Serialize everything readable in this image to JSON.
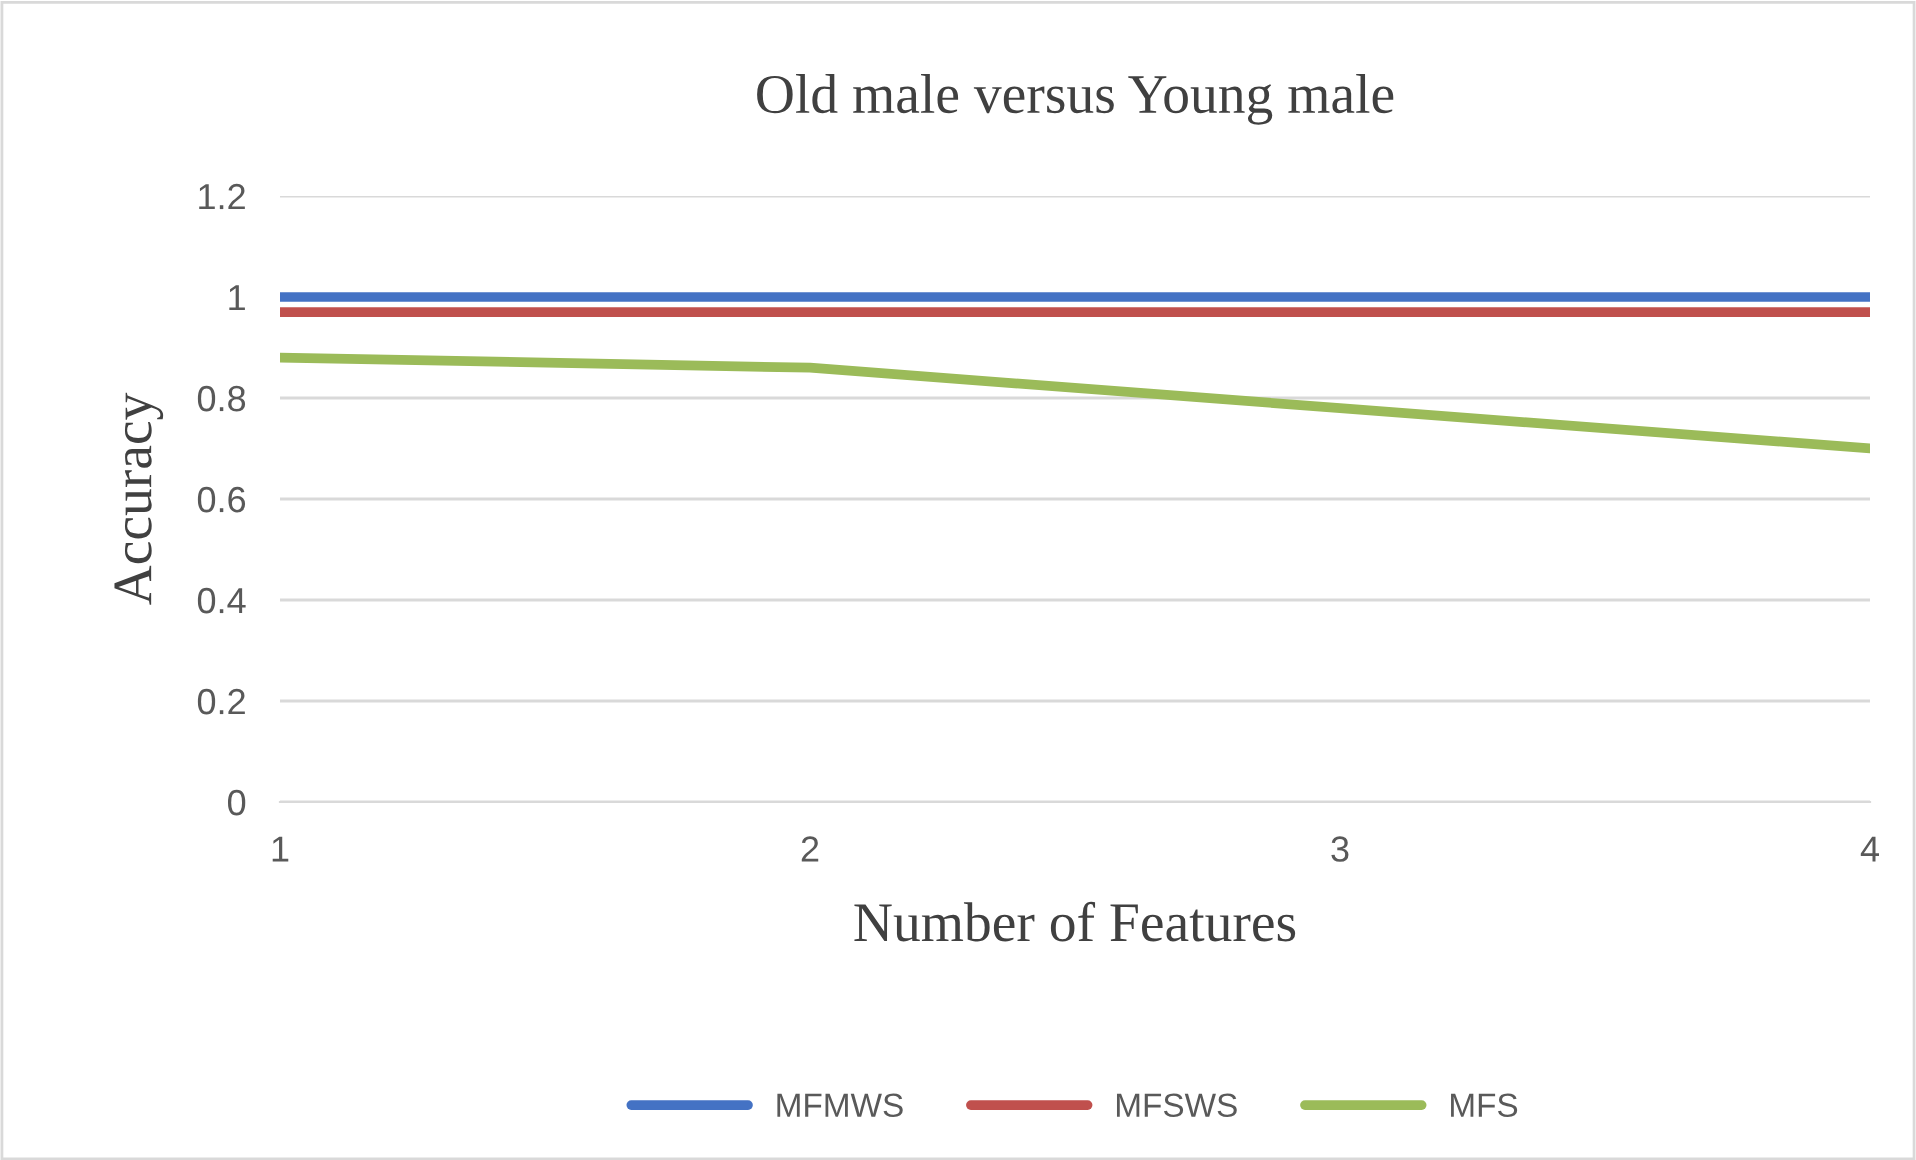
{
  "chart_data": {
    "type": "line",
    "title": "Old male versus Young male",
    "xlabel": "Number of Features",
    "ylabel": "Accuracy",
    "x": [
      1,
      2,
      3,
      4
    ],
    "series": [
      {
        "name": "MFMWS",
        "color": "#4472c4",
        "values": [
          1.0,
          1.0,
          1.0,
          1.0
        ]
      },
      {
        "name": "MFSWS",
        "color": "#c0504d",
        "values": [
          0.97,
          0.97,
          0.97,
          0.97
        ]
      },
      {
        "name": "MFS",
        "color": "#9bbb59",
        "values": [
          0.88,
          0.86,
          0.78,
          0.7
        ]
      }
    ],
    "xlim": [
      1,
      4
    ],
    "xticks": [
      1,
      2,
      3,
      4
    ],
    "ylim": [
      0,
      1.2
    ],
    "yticks": [
      0,
      0.2,
      0.4,
      0.6,
      0.8,
      1,
      1.2
    ],
    "grid": "y",
    "legend": "bottom",
    "marker": "none",
    "line_style": "solid"
  }
}
